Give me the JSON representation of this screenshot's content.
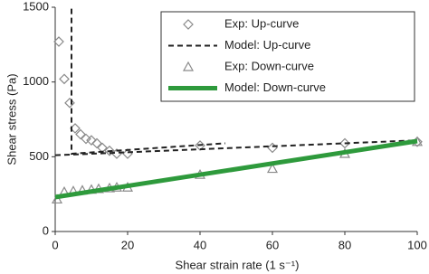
{
  "chart_data": {
    "type": "line",
    "xlabel": "Shear strain rate (1 s⁻¹)",
    "ylabel": "Shear stress (Pa)",
    "xlim": [
      0,
      100
    ],
    "xticks": [
      0,
      20,
      40,
      60,
      80,
      100
    ],
    "ylim": [
      0,
      1500
    ],
    "yticks": [
      0,
      500,
      1000,
      1500
    ],
    "legend": "upper right",
    "series": [
      {
        "name": "Exp: Up-curve",
        "color": "#8a8a8a",
        "marker": "diamond",
        "x": [
          1,
          2.5,
          4,
          5.5,
          7,
          8.5,
          10,
          11.5,
          13,
          15,
          17,
          20,
          40,
          60,
          80,
          100
        ],
        "values": [
          1270,
          1020,
          860,
          690,
          650,
          620,
          610,
          590,
          560,
          540,
          520,
          520,
          575,
          560,
          590,
          600
        ]
      },
      {
        "name": "Model: Up-curve",
        "color": "#222222",
        "dashed": true,
        "x": [
          4.5,
          4.5,
          47,
          47,
          0,
          100
        ],
        "values": [
          1490,
          520,
          590,
          null,
          510,
          610
        ]
      },
      {
        "name": "Exp: Down-curve",
        "color": "#8a8a8a",
        "marker": "triangle",
        "x": [
          0.5,
          2.5,
          5,
          7.5,
          10,
          12,
          15,
          17,
          20,
          40,
          60,
          80,
          100
        ],
        "values": [
          215,
          265,
          270,
          275,
          280,
          285,
          290,
          295,
          295,
          380,
          420,
          520,
          600
        ]
      },
      {
        "name": "Model: Down-curve",
        "color": "#2e9a3c",
        "x": [
          0,
          100
        ],
        "values": [
          230,
          605
        ]
      }
    ]
  }
}
